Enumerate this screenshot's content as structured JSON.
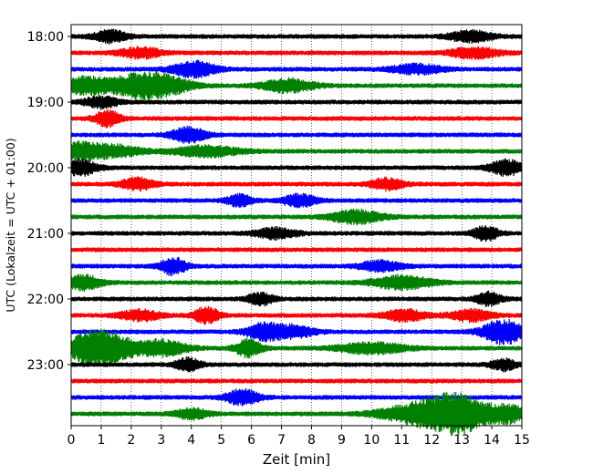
{
  "chart_data": {
    "type": "line",
    "title": "",
    "xlabel": "Zeit  [min]",
    "ylabel": "UTC (Lokalzeit = UTC + 01:00)",
    "xlim": [
      0,
      15
    ],
    "x_ticks": [
      0,
      1,
      2,
      3,
      4,
      5,
      6,
      7,
      8,
      9,
      10,
      11,
      12,
      13,
      14,
      15
    ],
    "x_tick_labels": [
      "0",
      "1",
      "2",
      "3",
      "4",
      "5",
      "6",
      "7",
      "8",
      "9",
      "10",
      "11",
      "12",
      "13",
      "14",
      "15"
    ],
    "y_tick_labels": [
      "18:00",
      "19:00",
      "20:00",
      "21:00",
      "22:00",
      "23:00"
    ],
    "grid": "vertical dotted lines at each minute",
    "trace_interval_minutes": 15,
    "trace_color_cycle": [
      "#000000",
      "#ff0000",
      "#0000ff",
      "#008000"
    ],
    "traces": [
      {
        "start": "18:00",
        "color": "#000000",
        "bursts": [
          [
            1.3,
            0.4,
            1.5
          ],
          [
            13.3,
            0.5,
            1.4
          ]
        ]
      },
      {
        "start": "18:15",
        "color": "#ff0000",
        "bursts": [
          [
            2.3,
            0.5,
            1.3
          ],
          [
            13.4,
            0.6,
            1.3
          ]
        ]
      },
      {
        "start": "18:30",
        "color": "#0000ff",
        "bursts": [
          [
            4.1,
            0.5,
            2.0
          ],
          [
            11.5,
            0.6,
            1.2
          ]
        ]
      },
      {
        "start": "18:45",
        "color": "#008000",
        "bursts": [
          [
            0.5,
            0.6,
            2.2
          ],
          [
            2.2,
            0.6,
            2.6
          ],
          [
            3.2,
            0.6,
            2.0
          ],
          [
            7.2,
            0.6,
            1.7
          ]
        ]
      },
      {
        "start": "19:00",
        "color": "#000000",
        "bursts": [
          [
            1.0,
            0.4,
            1.4
          ]
        ]
      },
      {
        "start": "19:15",
        "color": "#ff0000",
        "bursts": [
          [
            1.2,
            0.3,
            2.0
          ]
        ]
      },
      {
        "start": "19:30",
        "color": "#0000ff",
        "bursts": [
          [
            3.9,
            0.4,
            2.0
          ]
        ]
      },
      {
        "start": "19:45",
        "color": "#008000",
        "bursts": [
          [
            0.3,
            0.5,
            2.0
          ],
          [
            1.5,
            0.6,
            1.4
          ],
          [
            4.5,
            0.8,
            1.3
          ]
        ]
      },
      {
        "start": "20:00",
        "color": "#000000",
        "bursts": [
          [
            0.3,
            0.4,
            1.9
          ],
          [
            14.5,
            0.4,
            1.9
          ]
        ]
      },
      {
        "start": "20:15",
        "color": "#ff0000",
        "bursts": [
          [
            2.2,
            0.4,
            1.5
          ],
          [
            10.5,
            0.4,
            1.4
          ]
        ]
      },
      {
        "start": "20:30",
        "color": "#0000ff",
        "bursts": [
          [
            5.6,
            0.3,
            1.5
          ],
          [
            7.6,
            0.4,
            1.5
          ]
        ]
      },
      {
        "start": "20:45",
        "color": "#008000",
        "bursts": [
          [
            9.5,
            0.6,
            1.7
          ]
        ]
      },
      {
        "start": "21:00",
        "color": "#000000",
        "bursts": [
          [
            6.8,
            0.5,
            1.3
          ],
          [
            13.8,
            0.3,
            1.8
          ]
        ]
      },
      {
        "start": "21:15",
        "color": "#ff0000",
        "bursts": []
      },
      {
        "start": "21:30",
        "color": "#0000ff",
        "bursts": [
          [
            3.4,
            0.3,
            2.2
          ],
          [
            10.3,
            0.5,
            1.3
          ]
        ]
      },
      {
        "start": "21:45",
        "color": "#008000",
        "bursts": [
          [
            0.4,
            0.4,
            1.9
          ],
          [
            11.0,
            0.7,
            1.7
          ]
        ]
      },
      {
        "start": "22:00",
        "color": "#000000",
        "bursts": [
          [
            6.3,
            0.3,
            1.5
          ],
          [
            13.9,
            0.3,
            1.6
          ]
        ]
      },
      {
        "start": "22:15",
        "color": "#ff0000",
        "bursts": [
          [
            2.3,
            0.5,
            1.3
          ],
          [
            4.5,
            0.3,
            2.0
          ],
          [
            11.1,
            0.5,
            1.4
          ],
          [
            13.3,
            0.5,
            1.4
          ]
        ]
      },
      {
        "start": "22:30",
        "color": "#0000ff",
        "bursts": [
          [
            6.4,
            0.4,
            2.0
          ],
          [
            7.4,
            0.5,
            1.5
          ],
          [
            14.4,
            0.5,
            3.0
          ]
        ]
      },
      {
        "start": "22:45",
        "color": "#008000",
        "bursts": [
          [
            0.4,
            0.4,
            2.2
          ],
          [
            1.2,
            0.6,
            4.0
          ],
          [
            3.0,
            0.6,
            2.0
          ],
          [
            5.9,
            0.3,
            2.2
          ],
          [
            10.0,
            0.8,
            1.4
          ]
        ]
      },
      {
        "start": "23:00",
        "color": "#000000",
        "bursts": [
          [
            3.9,
            0.3,
            1.6
          ],
          [
            14.4,
            0.3,
            1.4
          ]
        ]
      },
      {
        "start": "23:15",
        "color": "#ff0000",
        "bursts": []
      },
      {
        "start": "23:30",
        "color": "#0000ff",
        "bursts": [
          [
            5.7,
            0.4,
            1.9
          ]
        ]
      },
      {
        "start": "23:45",
        "color": "#008000",
        "bursts": [
          [
            4.0,
            0.4,
            1.3
          ],
          [
            11.8,
            1.0,
            2.8
          ],
          [
            13.0,
            0.7,
            3.8
          ],
          [
            14.6,
            0.4,
            2.0
          ]
        ]
      }
    ]
  }
}
